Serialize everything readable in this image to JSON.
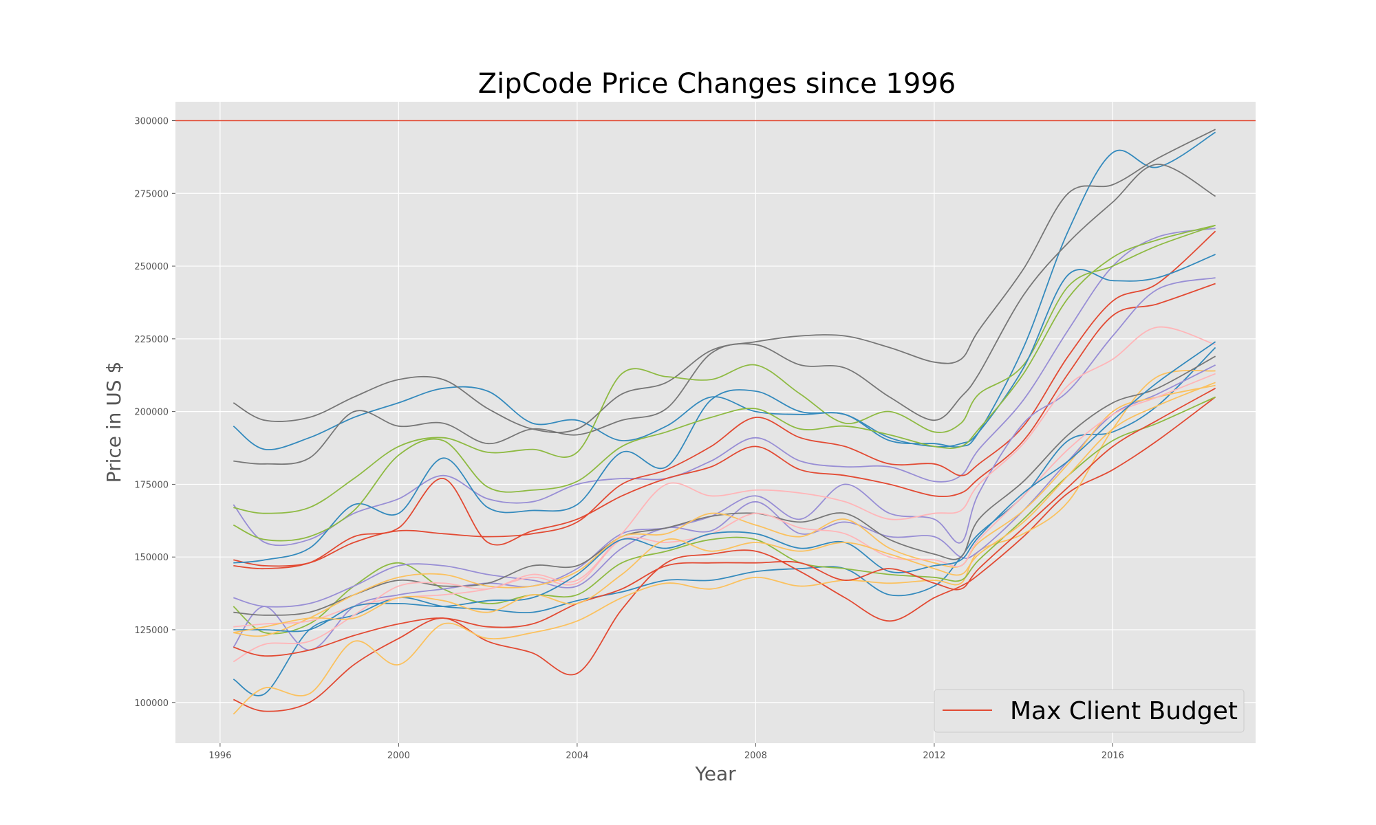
{
  "chart_data": {
    "type": "line",
    "title": "ZipCode Price Changes since 1996",
    "xlabel": "Year",
    "ylabel": "Price in US $",
    "xlim": [
      1995.0,
      2019.2
    ],
    "ylim": [
      86000,
      306500
    ],
    "x_ticks": [
      "1996",
      "2000",
      "2004",
      "2008",
      "2012",
      "2016"
    ],
    "y_ticks": [
      "100000",
      "125000",
      "150000",
      "175000",
      "200000",
      "225000",
      "250000",
      "275000",
      "300000"
    ],
    "grid": true,
    "legend_position": "bottom-right",
    "legend_entries": [
      "Max Client Budget"
    ],
    "hline": {
      "value": 300000,
      "color": "#E24A33",
      "label": "Max Client Budget"
    },
    "x_dates": [
      1996.3,
      1997.0,
      1998.0,
      1999.0,
      2000.0,
      2001.0,
      2002.0,
      2003.0,
      2004.0,
      2005.0,
      2006.0,
      2007.0,
      2008.0,
      2009.0,
      2010.0,
      2011.0,
      2012.0,
      2012.6,
      2013.0,
      2014.0,
      2015.0,
      2016.0,
      2017.0,
      2018.3
    ],
    "colors": {
      "red": "#E24A33",
      "blue": "#348ABD",
      "purple": "#988ED5",
      "gray": "#777777",
      "yellow": "#FBC15E",
      "green": "#8EBA42",
      "pink": "#FFB5B8"
    },
    "series": [
      {
        "color": "#348ABD",
        "values": [
          195000,
          187000,
          191000,
          198000,
          203000,
          208000,
          207000,
          196000,
          197000,
          190000,
          195000,
          205000,
          200000,
          199000,
          199000,
          190000,
          189000,
          188000,
          193000,
          222000,
          262000,
          289000,
          284000,
          296000
        ]
      },
      {
        "color": "#777777",
        "values": [
          203000,
          197000,
          198000,
          205000,
          211000,
          211000,
          201000,
          194000,
          194000,
          206000,
          210000,
          221000,
          224000,
          226000,
          226000,
          222000,
          217000,
          218000,
          228000,
          249000,
          275000,
          278000,
          287000,
          297000
        ]
      },
      {
        "color": "#777777",
        "values": [
          183000,
          182000,
          184000,
          200000,
          195000,
          196000,
          189000,
          194000,
          192000,
          197000,
          201000,
          220000,
          223000,
          216000,
          215000,
          205000,
          197000,
          205000,
          213000,
          240000,
          258000,
          272000,
          285000,
          274000
        ]
      },
      {
        "color": "#988ED5",
        "values": [
          168000,
          155000,
          156000,
          165000,
          170000,
          178000,
          170000,
          169000,
          175000,
          177000,
          177000,
          183000,
          191000,
          183000,
          181000,
          181000,
          176000,
          178000,
          187000,
          204000,
          228000,
          250000,
          260000,
          263000
        ]
      },
      {
        "color": "#8EBA42",
        "values": [
          167000,
          165000,
          167000,
          177000,
          188000,
          191000,
          186000,
          187000,
          186000,
          213000,
          212000,
          211000,
          216000,
          206000,
          196000,
          200000,
          193000,
          196000,
          206000,
          216000,
          243000,
          250000,
          257000,
          264000
        ]
      },
      {
        "color": "#E24A33",
        "values": [
          149000,
          147000,
          148000,
          155000,
          159000,
          158000,
          157000,
          158000,
          162000,
          175000,
          180000,
          188000,
          198000,
          191000,
          188000,
          182000,
          182000,
          178000,
          182000,
          195000,
          219000,
          238000,
          244000,
          262000
        ]
      },
      {
        "color": "#348ABD",
        "values": [
          148000,
          149000,
          153000,
          168000,
          165000,
          184000,
          167000,
          166000,
          168000,
          186000,
          181000,
          204000,
          207000,
          200000,
          199000,
          191000,
          188000,
          189000,
          193000,
          215000,
          247000,
          245000,
          246000,
          254000
        ]
      },
      {
        "color": "#8EBA42",
        "values": [
          161000,
          156000,
          157000,
          166000,
          185000,
          190000,
          174000,
          173000,
          176000,
          188000,
          193000,
          198000,
          201000,
          194000,
          195000,
          192000,
          188000,
          188000,
          194000,
          213000,
          239000,
          253000,
          259000,
          264000
        ]
      },
      {
        "color": "#E24A33",
        "values": [
          147000,
          146000,
          148000,
          157000,
          160000,
          177000,
          155000,
          159000,
          163000,
          171000,
          177000,
          181000,
          188000,
          180000,
          178000,
          175000,
          171000,
          172000,
          177000,
          190000,
          213000,
          233000,
          237000,
          244000
        ]
      },
      {
        "color": "#348ABD",
        "values": [
          108000,
          103000,
          125000,
          130000,
          136000,
          133000,
          132000,
          131000,
          135000,
          138000,
          142000,
          142000,
          145000,
          146000,
          146000,
          137000,
          140000,
          150000,
          158000,
          171000,
          190000,
          193000,
          202000,
          222000
        ]
      },
      {
        "color": "#E24A33",
        "values": [
          101000,
          97000,
          100000,
          113000,
          122000,
          129000,
          121000,
          117000,
          110000,
          132000,
          148000,
          151000,
          152000,
          145000,
          136000,
          128000,
          136000,
          140000,
          144000,
          157000,
          172000,
          180000,
          190000,
          205000
        ]
      },
      {
        "color": "#FBC15E",
        "values": [
          96000,
          105000,
          103000,
          121000,
          113000,
          127000,
          122000,
          124000,
          128000,
          136000,
          141000,
          139000,
          143000,
          140000,
          142000,
          141000,
          142000,
          141000,
          152000,
          158000,
          169000,
          194000,
          212000,
          214000
        ]
      },
      {
        "color": "#8EBA42",
        "values": [
          133000,
          124000,
          127000,
          140000,
          148000,
          139000,
          134000,
          137000,
          137000,
          148000,
          152000,
          156000,
          156000,
          148000,
          146000,
          144000,
          143000,
          142000,
          149000,
          163000,
          178000,
          190000,
          196000,
          205000
        ]
      },
      {
        "color": "#988ED5",
        "values": [
          136000,
          133000,
          134000,
          140000,
          147000,
          147000,
          144000,
          142000,
          140000,
          153000,
          160000,
          159000,
          169000,
          158000,
          162000,
          157000,
          157000,
          150000,
          152000,
          166000,
          183000,
          199000,
          206000,
          216000
        ]
      },
      {
        "color": "#988ED5",
        "values": [
          119000,
          133000,
          118000,
          133000,
          137000,
          139000,
          141000,
          140000,
          146000,
          158000,
          160000,
          164000,
          171000,
          163000,
          175000,
          165000,
          163000,
          155000,
          172000,
          196000,
          207000,
          226000,
          242000,
          246000
        ]
      },
      {
        "color": "#777777",
        "values": [
          131000,
          130000,
          131000,
          137000,
          142000,
          140000,
          141000,
          147000,
          147000,
          157000,
          160000,
          164000,
          165000,
          162000,
          165000,
          156000,
          151000,
          150000,
          163000,
          176000,
          192000,
          203000,
          208000,
          219000
        ]
      },
      {
        "color": "#FFB5B8",
        "values": [
          114000,
          120000,
          121000,
          130000,
          140000,
          141000,
          139000,
          144000,
          142000,
          158000,
          175000,
          171000,
          173000,
          172000,
          169000,
          163000,
          165000,
          166000,
          175000,
          189000,
          209000,
          218000,
          229000,
          223000
        ]
      },
      {
        "color": "#FBC15E",
        "values": [
          124000,
          123000,
          129000,
          137000,
          143000,
          144000,
          140000,
          140000,
          145000,
          157000,
          158000,
          165000,
          161000,
          157000,
          163000,
          153000,
          148000,
          147000,
          155000,
          166000,
          182000,
          200000,
          205000,
          209000
        ]
      },
      {
        "color": "#FFB5B8",
        "values": [
          126000,
          127000,
          128000,
          133000,
          136000,
          137000,
          139000,
          143000,
          141000,
          156000,
          155000,
          158000,
          165000,
          160000,
          158000,
          150000,
          149000,
          147000,
          156000,
          171000,
          187000,
          199000,
          205000,
          213000
        ]
      },
      {
        "color": "#348ABD",
        "values": [
          125000,
          125000,
          125000,
          133000,
          134000,
          133000,
          135000,
          136000,
          144000,
          156000,
          153000,
          158000,
          158000,
          153000,
          155000,
          145000,
          147000,
          149000,
          157000,
          172000,
          183000,
          197000,
          210000,
          224000
        ]
      },
      {
        "color": "#E24A33",
        "values": [
          119000,
          116000,
          118000,
          123000,
          127000,
          129000,
          126000,
          127000,
          134000,
          139000,
          147000,
          148000,
          148000,
          148000,
          142000,
          146000,
          141000,
          139000,
          146000,
          160000,
          174000,
          188000,
          197000,
          208000
        ]
      },
      {
        "color": "#FBC15E",
        "values": [
          124000,
          126000,
          129000,
          129000,
          136000,
          135000,
          131000,
          137000,
          134000,
          144000,
          156000,
          152000,
          155000,
          152000,
          155000,
          151000,
          146000,
          144000,
          151000,
          162000,
          178000,
          194000,
          202000,
          210000
        ]
      }
    ]
  }
}
